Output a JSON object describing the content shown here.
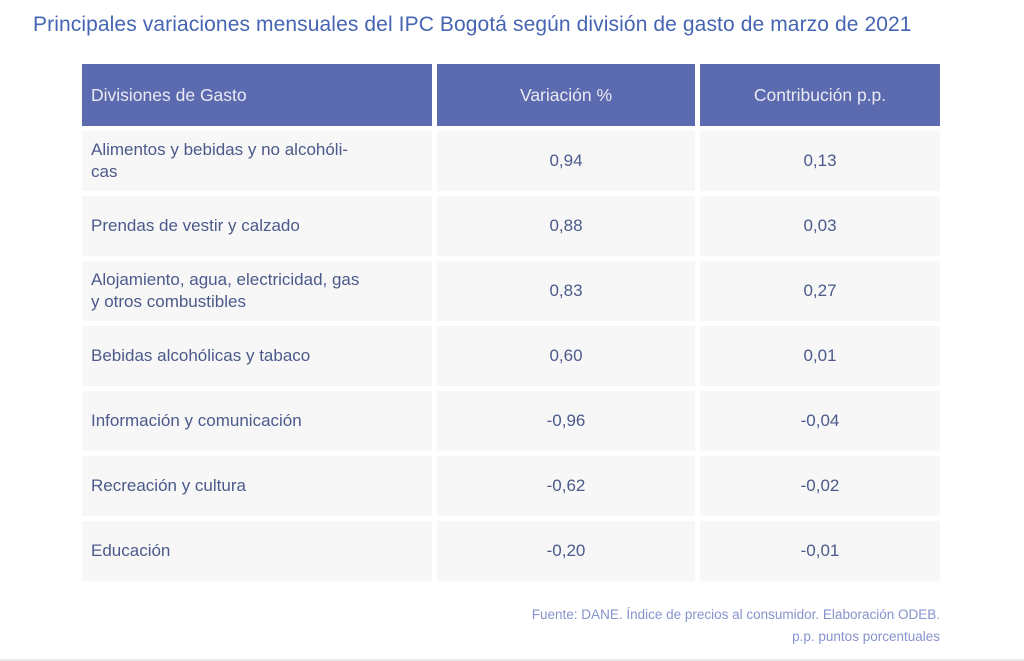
{
  "page_title": "Principales variaciones mensuales del IPC Bogotá según división de gasto de marzo de 2021",
  "table": {
    "headers": [
      "Divisiones de Gasto",
      "Variación %",
      "Contribución p.p."
    ],
    "rows": [
      {
        "division": "Alimentos y bebidas y no alcohóli-\ncas",
        "variacion": "0,94",
        "contribucion": "0,13"
      },
      {
        "division": "Prendas de vestir y calzado",
        "variacion": "0,88",
        "contribucion": "0,03"
      },
      {
        "division": "Alojamiento, agua, electricidad, gas\ny otros combustibles",
        "variacion": "0,83",
        "contribucion": "0,27"
      },
      {
        "division": "Bebidas alcohólicas y tabaco",
        "variacion": "0,60",
        "contribucion": "0,01"
      },
      {
        "division": "Información y comunicación",
        "variacion": "-0,96",
        "contribucion": "-0,04"
      },
      {
        "division": "Recreación y cultura",
        "variacion": "-0,62",
        "contribucion": "-0,02"
      },
      {
        "division": "Educación",
        "variacion": "-0,20",
        "contribucion": "-0,01"
      }
    ]
  },
  "footer": {
    "source": "Fuente: DANE. Índice de precios al consumidor. Elaboración ODEB.",
    "note": "p.p. puntos porcentuales"
  },
  "colors": {
    "header_bg": "#5c6baf",
    "header_text": "#e9eaf2",
    "row_bg": "#f7f7f7",
    "body_text": "#4b5a8b",
    "title_text": "#4565b2",
    "footer_text": "#8793cc",
    "bottom_line": "#e9e9e9"
  },
  "chart_data": {
    "type": "table",
    "title": "Principales variaciones mensuales del IPC Bogotá según división de gasto de marzo de 2021",
    "columns": [
      "Divisiones de Gasto",
      "Variación %",
      "Contribución p.p."
    ],
    "rows": [
      {
        "division": "Alimentos y bebidas y no alcohólicas",
        "variacion_pct": 0.94,
        "contribucion_pp": 0.13
      },
      {
        "division": "Prendas de vestir y calzado",
        "variacion_pct": 0.88,
        "contribucion_pp": 0.03
      },
      {
        "division": "Alojamiento, agua, electricidad, gas y otros combustibles",
        "variacion_pct": 0.83,
        "contribucion_pp": 0.27
      },
      {
        "division": "Bebidas alcohólicas y tabaco",
        "variacion_pct": 0.6,
        "contribucion_pp": 0.01
      },
      {
        "division": "Información y comunicación",
        "variacion_pct": -0.96,
        "contribucion_pp": -0.04
      },
      {
        "division": "Recreación y cultura",
        "variacion_pct": -0.62,
        "contribucion_pp": -0.02
      },
      {
        "division": "Educación",
        "variacion_pct": -0.2,
        "contribucion_pp": -0.01
      }
    ],
    "source": "Fuente: DANE. Índice de precios al consumidor. Elaboración ODEB.",
    "note": "p.p. puntos porcentuales",
    "decimal_separator": ","
  }
}
